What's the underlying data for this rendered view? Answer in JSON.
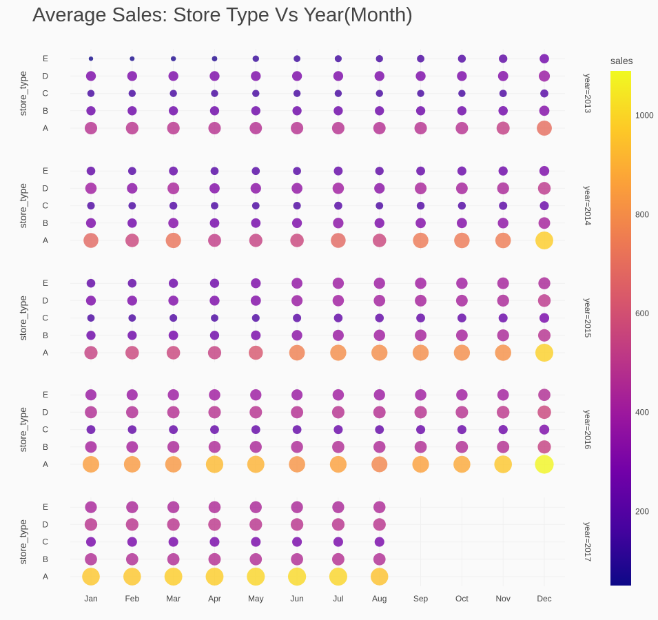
{
  "chart_data": {
    "type": "scatter",
    "title": "Average Sales: Store Type Vs Year(Month)",
    "ylabel": "store_type",
    "months": [
      "Jan",
      "Feb",
      "Mar",
      "Apr",
      "May",
      "Jun",
      "Jul",
      "Aug",
      "Sep",
      "Oct",
      "Nov",
      "Dec"
    ],
    "store_types": [
      "A",
      "B",
      "C",
      "D",
      "E"
    ],
    "facet_labels": [
      "year=2013",
      "year=2014",
      "year=2015",
      "year=2016",
      "year=2017"
    ],
    "colorbar": {
      "title": "sales",
      "range": [
        50,
        1090
      ],
      "ticks": [
        200,
        400,
        600,
        800,
        1000
      ],
      "colorscale": [
        "#0d0887",
        "#46039f",
        "#7201a8",
        "#9c179e",
        "#bd3786",
        "#d8576b",
        "#ed7953",
        "#fb9f3a",
        "#fdca26",
        "#f0f921"
      ]
    },
    "years": [
      {
        "year": 2013,
        "values": {
          "A": [
            480,
            490,
            490,
            480,
            470,
            480,
            480,
            470,
            480,
            480,
            530,
            700
          ],
          "B": [
            260,
            260,
            260,
            260,
            260,
            260,
            260,
            260,
            260,
            260,
            270,
            320
          ],
          "C": [
            160,
            160,
            160,
            160,
            160,
            160,
            160,
            160,
            160,
            160,
            170,
            200
          ],
          "D": [
            300,
            300,
            300,
            300,
            300,
            300,
            300,
            300,
            300,
            300,
            320,
            380
          ],
          "E": [
            60,
            70,
            80,
            90,
            130,
            140,
            150,
            160,
            170,
            190,
            220,
            270
          ]
        }
      },
      {
        "year": 2014,
        "values": {
          "A": [
            680,
            560,
            720,
            520,
            540,
            560,
            680,
            560,
            740,
            740,
            750,
            980
          ],
          "B": [
            300,
            270,
            320,
            280,
            280,
            300,
            340,
            300,
            320,
            320,
            350,
            420
          ],
          "C": [
            180,
            170,
            190,
            170,
            170,
            180,
            200,
            170,
            190,
            190,
            210,
            250
          ],
          "D": [
            400,
            340,
            430,
            320,
            340,
            360,
            400,
            340,
            430,
            420,
            440,
            500
          ],
          "E": [
            230,
            200,
            240,
            200,
            200,
            200,
            240,
            220,
            240,
            250,
            260,
            300
          ]
        }
      },
      {
        "year": 2015,
        "values": {
          "A": [
            540,
            560,
            560,
            540,
            620,
            760,
            800,
            800,
            800,
            800,
            810,
            990
          ],
          "B": [
            260,
            260,
            280,
            260,
            290,
            340,
            380,
            400,
            420,
            420,
            440,
            480
          ],
          "C": [
            170,
            170,
            180,
            170,
            180,
            210,
            230,
            230,
            240,
            240,
            250,
            290
          ],
          "D": [
            300,
            300,
            310,
            300,
            320,
            380,
            400,
            410,
            420,
            420,
            440,
            500
          ],
          "E": [
            230,
            230,
            260,
            260,
            300,
            360,
            390,
            390,
            400,
            400,
            420,
            440
          ]
        }
      },
      {
        "year": 2016,
        "values": {
          "A": [
            850,
            840,
            830,
            930,
            910,
            820,
            860,
            780,
            860,
            880,
            960,
            1080
          ],
          "B": [
            420,
            420,
            440,
            450,
            440,
            450,
            460,
            450,
            460,
            460,
            470,
            540
          ],
          "C": [
            240,
            230,
            240,
            240,
            240,
            240,
            250,
            240,
            250,
            250,
            260,
            300
          ],
          "D": [
            460,
            460,
            470,
            480,
            480,
            470,
            480,
            470,
            480,
            480,
            500,
            560
          ],
          "E": [
            380,
            380,
            390,
            400,
            390,
            380,
            400,
            390,
            400,
            400,
            410,
            460
          ]
        }
      },
      {
        "year": 2017,
        "values": {
          "A": [
            960,
            960,
            980,
            980,
            1000,
            1010,
            1000,
            950
          ],
          "B": [
            460,
            460,
            460,
            470,
            460,
            460,
            470,
            460
          ],
          "C": [
            290,
            290,
            290,
            290,
            290,
            290,
            290,
            290
          ],
          "D": [
            490,
            490,
            490,
            500,
            490,
            490,
            490,
            490
          ],
          "E": [
            430,
            440,
            440,
            450,
            440,
            440,
            440,
            450
          ]
        }
      }
    ]
  }
}
